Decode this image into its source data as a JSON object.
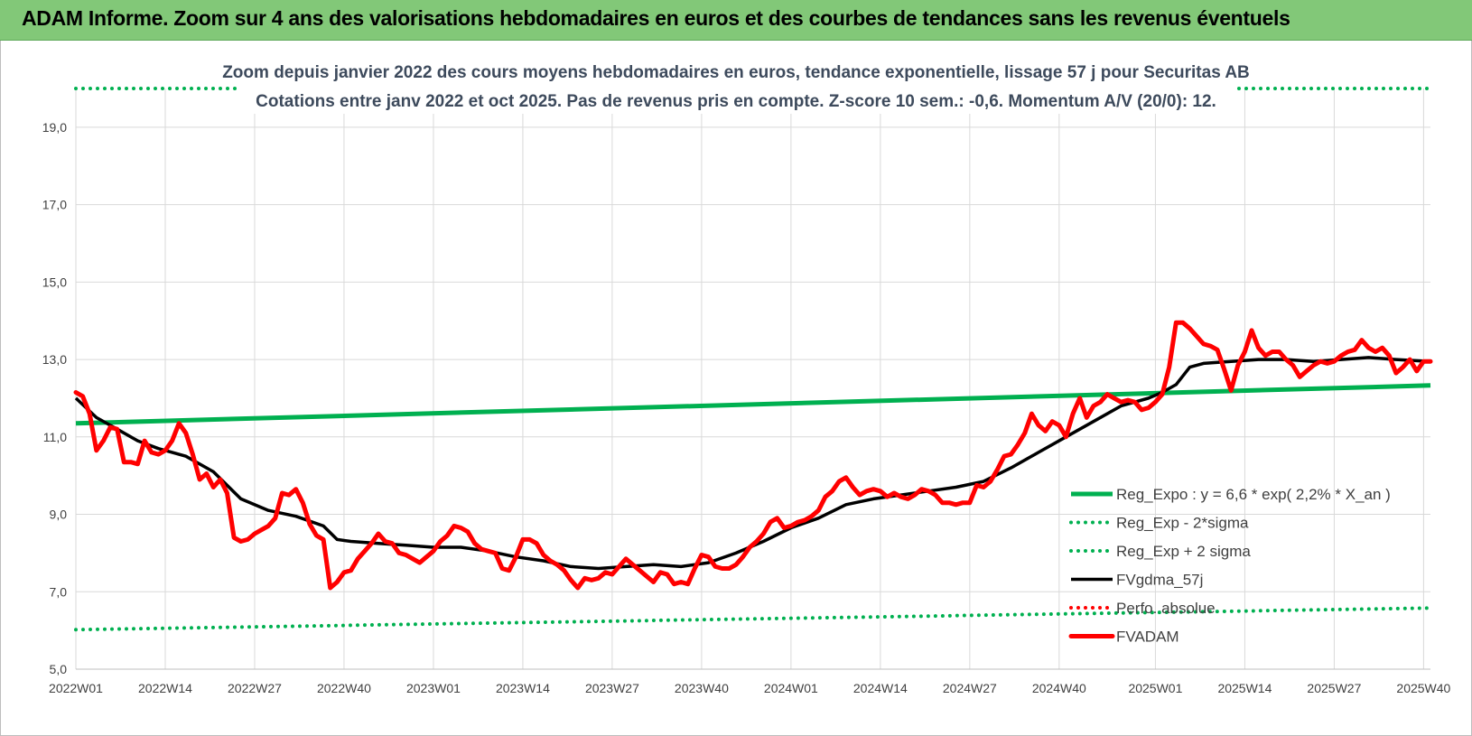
{
  "banner": {
    "title": "ADAM Informe. Zoom sur 4 ans des valorisations hebdomadaires en euros et des courbes de tendances sans les revenus éventuels"
  },
  "chart_data": {
    "type": "line",
    "title": [
      "Zoom depuis janvier 2022 des cours moyens hebdomadaires en euros, tendance exponentielle, lissage 57 j pour Securitas AB",
      "Cotations entre janv 2022 et oct 2025. Pas de revenus pris en compte. Z-score 10 sem.: -0,6. Momentum A/V (20/0): 12."
    ],
    "xlabel": "",
    "ylabel": "",
    "ylim": [
      5.0,
      20.0
    ],
    "y_ticks": [
      "5,0",
      "7,0",
      "9,0",
      "11,0",
      "13,0",
      "15,0",
      "17,0",
      "19,0"
    ],
    "y_tick_values": [
      5,
      7,
      9,
      11,
      13,
      15,
      17,
      19
    ],
    "x_range_weeks": [
      0,
      197
    ],
    "x_tick_labels": [
      "2022W01",
      "2022W14",
      "2022W27",
      "2022W40",
      "2023W01",
      "2023W14",
      "2023W27",
      "2023W40",
      "2024W01",
      "2024W14",
      "2024W27",
      "2024W40",
      "2025W01",
      "2025W14",
      "2025W27",
      "2025W40"
    ],
    "x_tick_weeks": [
      0,
      13,
      26,
      39,
      52,
      65,
      78,
      91,
      104,
      117,
      130,
      143,
      157,
      170,
      183,
      196
    ],
    "legend_placement": "lower-right",
    "grid": true,
    "series": [
      {
        "name": "Reg_Expo : y = 6,6 * exp( 2,2% *  X_an )",
        "color": "#00b050",
        "style": "solid",
        "weeks": [
          0,
          197
        ],
        "values": [
          11.35,
          12.33
        ]
      },
      {
        "name": "Reg_Exp - 2*sigma",
        "color": "#00b050",
        "style": "dotted",
        "weeks": [
          0,
          197
        ],
        "values": [
          6.02,
          6.58
        ]
      },
      {
        "name": "Reg_Exp + 2 sigma",
        "color": "#00b050",
        "style": "dotted",
        "weeks": [
          0,
          197
        ],
        "values": [
          20.0,
          20.0
        ]
      },
      {
        "name": "FVgdma_57j",
        "color": "#000000",
        "style": "solid",
        "weeks": [
          0,
          3,
          6,
          9,
          12,
          16,
          20,
          24,
          28,
          32,
          36,
          38,
          40,
          44,
          48,
          52,
          56,
          60,
          64,
          68,
          72,
          76,
          80,
          84,
          88,
          92,
          96,
          100,
          104,
          108,
          112,
          116,
          120,
          124,
          128,
          132,
          136,
          140,
          144,
          148,
          152,
          156,
          158,
          160,
          162,
          164,
          168,
          172,
          176,
          180,
          184,
          188,
          192,
          197
        ],
        "values": [
          12.0,
          11.5,
          11.2,
          10.9,
          10.7,
          10.5,
          10.1,
          9.4,
          9.1,
          8.95,
          8.7,
          8.35,
          8.3,
          8.25,
          8.2,
          8.15,
          8.15,
          8.05,
          7.9,
          7.8,
          7.65,
          7.6,
          7.65,
          7.7,
          7.65,
          7.75,
          8.0,
          8.3,
          8.65,
          8.9,
          9.25,
          9.4,
          9.5,
          9.6,
          9.7,
          9.85,
          10.2,
          10.6,
          11.0,
          11.4,
          11.8,
          12.0,
          12.15,
          12.35,
          12.8,
          12.9,
          12.95,
          13.0,
          13.0,
          12.95,
          13.0,
          13.05,
          13.0,
          12.95
        ]
      },
      {
        "name": "Perfo. absolue",
        "color": "#ff0000",
        "style": "dotted",
        "weeks": [],
        "values": []
      },
      {
        "name": "FVADAM",
        "color": "#ff0000",
        "style": "solid-thick",
        "weeks": [
          0,
          1,
          2,
          3,
          4,
          5,
          6,
          7,
          8,
          9,
          10,
          11,
          12,
          13,
          14,
          15,
          16,
          17,
          18,
          19,
          20,
          21,
          22,
          23,
          24,
          25,
          26,
          27,
          28,
          29,
          30,
          31,
          32,
          33,
          34,
          35,
          36,
          37,
          38,
          39,
          40,
          41,
          42,
          43,
          44,
          45,
          46,
          47,
          48,
          49,
          50,
          51,
          52,
          53,
          54,
          55,
          56,
          57,
          58,
          59,
          60,
          61,
          62,
          63,
          64,
          65,
          66,
          67,
          68,
          69,
          70,
          71,
          72,
          73,
          74,
          75,
          76,
          77,
          78,
          79,
          80,
          81,
          82,
          83,
          84,
          85,
          86,
          87,
          88,
          89,
          90,
          91,
          92,
          93,
          94,
          95,
          96,
          97,
          98,
          99,
          100,
          101,
          102,
          103,
          104,
          105,
          106,
          107,
          108,
          109,
          110,
          111,
          112,
          113,
          114,
          115,
          116,
          117,
          118,
          119,
          120,
          121,
          122,
          123,
          124,
          125,
          126,
          127,
          128,
          129,
          130,
          131,
          132,
          133,
          134,
          135,
          136,
          137,
          138,
          139,
          140,
          141,
          142,
          143,
          144,
          145,
          146,
          147,
          148,
          149,
          150,
          151,
          152,
          153,
          154,
          155,
          156,
          157,
          158,
          159,
          160,
          161,
          162,
          163,
          164,
          165,
          166,
          167,
          168,
          169,
          170,
          171,
          172,
          173,
          174,
          175,
          176,
          177,
          178,
          179,
          180,
          181,
          182,
          183,
          184,
          185,
          186,
          187,
          188,
          189,
          190,
          191,
          192,
          193,
          194,
          195,
          196,
          197
        ],
        "values": [
          12.15,
          12.05,
          11.6,
          10.65,
          10.9,
          11.25,
          11.2,
          10.35,
          10.35,
          10.3,
          10.9,
          10.6,
          10.55,
          10.65,
          10.9,
          11.35,
          11.1,
          10.55,
          9.9,
          10.05,
          9.7,
          9.9,
          9.55,
          8.4,
          8.3,
          8.35,
          8.5,
          8.6,
          8.7,
          8.9,
          9.55,
          9.5,
          9.65,
          9.3,
          8.75,
          8.45,
          8.35,
          7.1,
          7.25,
          7.5,
          7.55,
          7.85,
          8.05,
          8.25,
          8.5,
          8.3,
          8.25,
          8.0,
          7.95,
          7.85,
          7.75,
          7.9,
          8.05,
          8.3,
          8.45,
          8.7,
          8.65,
          8.55,
          8.25,
          8.1,
          8.05,
          8.0,
          7.6,
          7.55,
          7.9,
          8.35,
          8.35,
          8.25,
          7.95,
          7.8,
          7.7,
          7.55,
          7.3,
          7.1,
          7.35,
          7.3,
          7.35,
          7.5,
          7.45,
          7.65,
          7.85,
          7.7,
          7.55,
          7.4,
          7.25,
          7.5,
          7.45,
          7.2,
          7.25,
          7.2,
          7.6,
          7.95,
          7.9,
          7.65,
          7.6,
          7.6,
          7.7,
          7.9,
          8.15,
          8.3,
          8.5,
          8.8,
          8.9,
          8.65,
          8.7,
          8.8,
          8.85,
          8.95,
          9.1,
          9.45,
          9.6,
          9.85,
          9.95,
          9.7,
          9.5,
          9.6,
          9.65,
          9.6,
          9.45,
          9.55,
          9.45,
          9.4,
          9.5,
          9.65,
          9.6,
          9.5,
          9.3,
          9.3,
          9.25,
          9.3,
          9.3,
          9.75,
          9.7,
          9.85,
          10.15,
          10.5,
          10.55,
          10.8,
          11.1,
          11.6,
          11.3,
          11.15,
          11.4,
          11.3,
          11.0,
          11.6,
          12.0,
          11.5,
          11.8,
          11.9,
          12.1,
          12.0,
          11.9,
          11.95,
          11.9,
          11.7,
          11.75,
          11.9,
          12.1,
          12.8,
          13.95,
          13.95,
          13.8,
          13.6,
          13.4,
          13.35,
          13.25,
          12.75,
          12.2,
          12.85,
          13.2,
          13.75,
          13.3,
          13.1,
          13.2,
          13.2,
          13.0,
          12.85,
          12.55,
          12.7,
          12.85,
          12.95,
          12.9,
          12.95,
          13.1,
          13.2,
          13.25,
          13.5,
          13.3,
          13.2,
          13.3,
          13.1,
          12.65,
          12.8,
          13.0,
          12.7,
          12.95,
          12.95
        ]
      }
    ]
  }
}
